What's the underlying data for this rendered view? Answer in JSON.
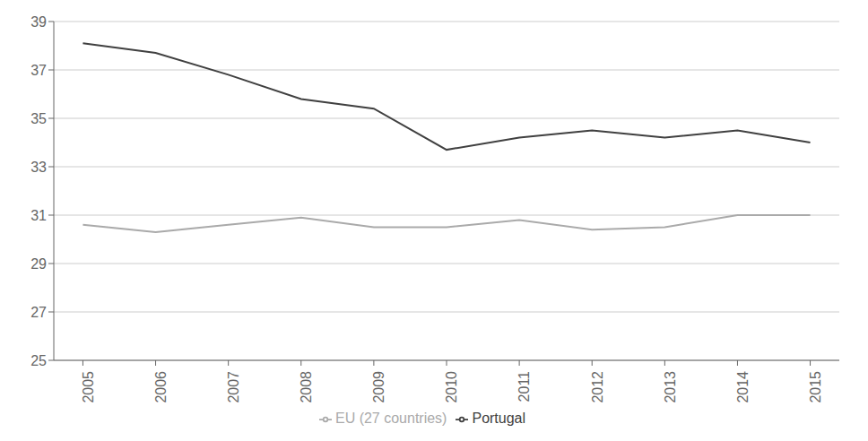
{
  "chart_data": {
    "type": "line",
    "x": [
      2005,
      2006,
      2007,
      2008,
      2009,
      2010,
      2011,
      2012,
      2013,
      2014,
      2015
    ],
    "series": [
      {
        "name": "Portugal",
        "color": "#404040",
        "values": [
          38.1,
          37.7,
          36.8,
          35.8,
          35.4,
          33.7,
          34.2,
          34.5,
          34.2,
          34.5,
          34.0
        ]
      },
      {
        "name": "EU (27 countries)",
        "color": "#aaaaaa",
        "values": [
          30.6,
          30.3,
          30.6,
          30.9,
          30.5,
          30.5,
          30.8,
          30.4,
          30.5,
          31.0,
          31.0
        ]
      }
    ],
    "xlim": [
      2004.6,
      2015.4
    ],
    "xticks": [
      2005,
      2006,
      2007,
      2008,
      2009,
      2010,
      2011,
      2012,
      2013,
      2014,
      2015
    ],
    "ylim": [
      25,
      39
    ],
    "yticks": [
      25,
      27,
      29,
      31,
      33,
      35,
      37,
      39
    ],
    "grid": true,
    "legend": "bottom"
  }
}
